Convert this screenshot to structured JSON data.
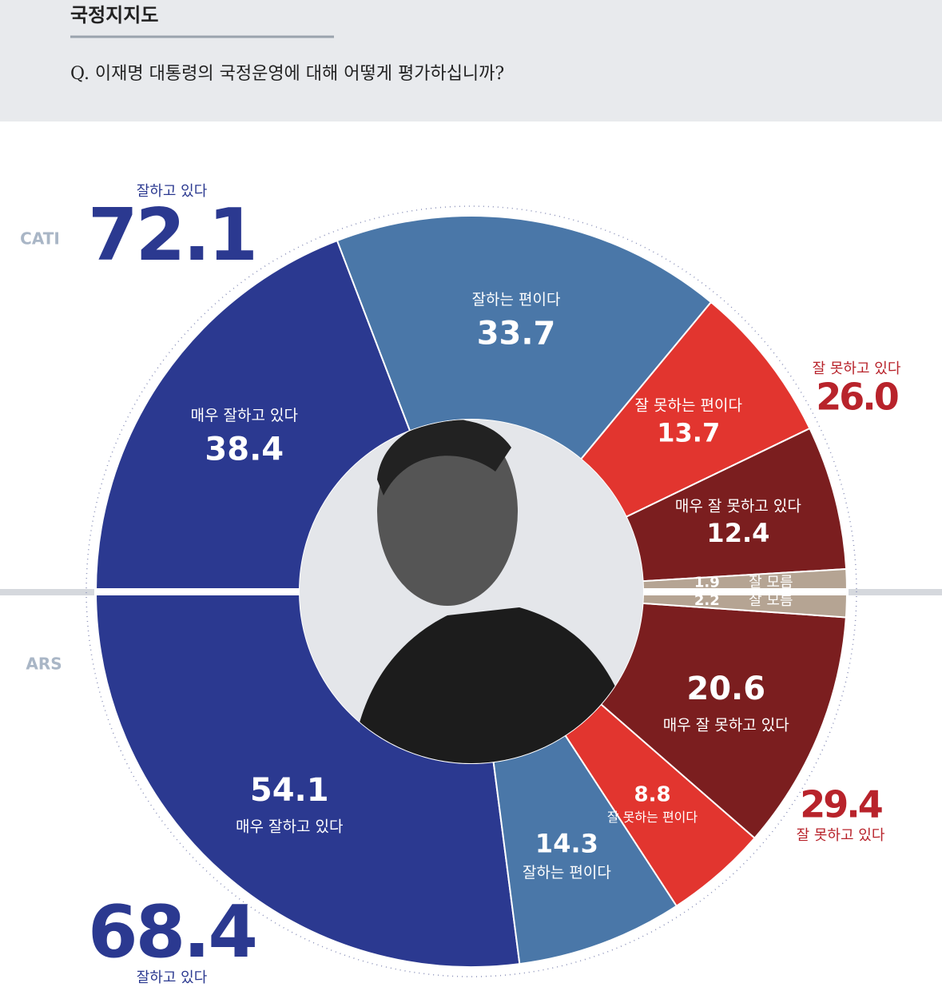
{
  "chart_data": {
    "type": "split-donut",
    "title": "국정지지도",
    "subtitle": "Q. 이재명 대통령의 국정운영에 대해 어떻게 평가하십니까?",
    "series": [
      {
        "name": "CATI",
        "categories": [
          "매우 잘하고 있다",
          "잘하는 편이다",
          "잘 못하는 편이다",
          "매우 잘 못하고 있다",
          "잘 모름"
        ],
        "colors": [
          "#2b3990",
          "#4a77a8",
          "#e2352f",
          "#7b1e1f",
          "#b5a493"
        ],
        "values": [
          38.4,
          33.7,
          13.7,
          12.4,
          1.9
        ],
        "totals": {
          "names": [
            "잘하고 있다",
            "잘 못하고 있다"
          ],
          "colors": [
            "#2b3990",
            "#b8232b"
          ],
          "values": [
            72.1,
            26.0
          ],
          "value_labels": [
            "72.1",
            "26.0"
          ]
        }
      },
      {
        "name": "ARS",
        "categories": [
          "매우 잘하고 있다",
          "잘하는 편이다",
          "잘 못하는 편이다",
          "매우 잘 못하고 있다",
          "잘 모름"
        ],
        "colors": [
          "#2b3990",
          "#4a77a8",
          "#e2352f",
          "#7b1e1f",
          "#b5a493"
        ],
        "values": [
          54.1,
          14.3,
          8.8,
          20.6,
          2.2
        ],
        "totals": {
          "names": [
            "잘하고 있다",
            "잘 못하고 있다"
          ],
          "colors": [
            "#2b3990",
            "#b8232b"
          ],
          "values": [
            68.4,
            29.4
          ]
        }
      }
    ]
  }
}
